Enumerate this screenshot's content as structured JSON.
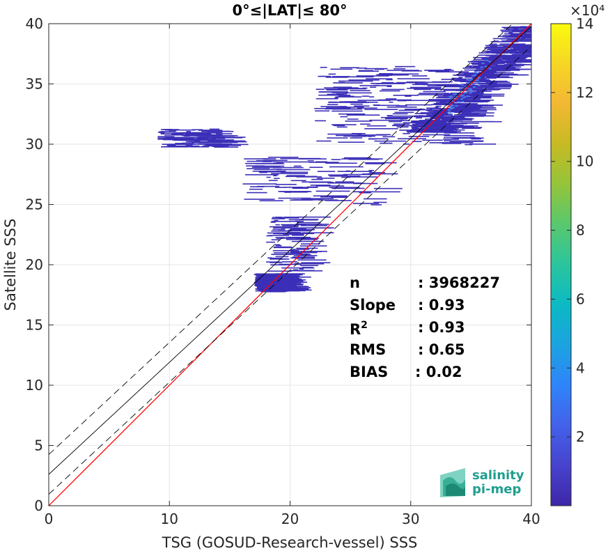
{
  "chart_data": {
    "type": "heatmap",
    "title": "0°≤|LAT|≤ 80°",
    "xlabel": "TSG (GOSUD-Research-vessel) SSS",
    "ylabel": "Satellite SSS",
    "xlim": [
      0,
      40
    ],
    "ylim": [
      0,
      40
    ],
    "xticks": [
      0,
      10,
      20,
      30,
      40
    ],
    "yticks": [
      0,
      5,
      10,
      15,
      20,
      25,
      30,
      35,
      40
    ],
    "grid": true,
    "colorbar": {
      "scale_label": "×10⁴",
      "range": [
        0,
        14
      ],
      "ticks": [
        2,
        4,
        6,
        8,
        10,
        12,
        14
      ],
      "colormap": [
        "#3e26a8",
        "#4743ce",
        "#4361e9",
        "#2f84fa",
        "#1ba3e0",
        "#0bbac4",
        "#2ac59e",
        "#59c86e",
        "#94c43a",
        "#c7ba23",
        "#f3b733",
        "#f6d625",
        "#f9fb0e"
      ]
    },
    "density_color": "#3b2fb8",
    "density_highlight_color": "#4a7ee8",
    "density_regions": [
      {
        "x": [
          30,
          39.5
        ],
        "y": [
          31,
          39.8
        ],
        "level": "high"
      },
      {
        "x": [
          22,
          35
        ],
        "y": [
          30,
          36.5
        ],
        "level": "medium"
      },
      {
        "x": [
          16,
          27
        ],
        "y": [
          25,
          29
        ],
        "level": "low"
      },
      {
        "x": [
          9,
          14
        ],
        "y": [
          29.8,
          31.3
        ],
        "level": "low"
      },
      {
        "x": [
          17,
          19
        ],
        "y": [
          17.8,
          19.3
        ],
        "level": "medium"
      },
      {
        "x": [
          18,
          21
        ],
        "y": [
          19.5,
          24
        ],
        "level": "low"
      }
    ],
    "lines": [
      {
        "name": "identity",
        "slope": 1.0,
        "intercept": 0.0,
        "color": "#ff0000",
        "style": "solid"
      },
      {
        "name": "fit",
        "slope": 0.93,
        "intercept": 2.6,
        "color": "#000000",
        "style": "solid"
      },
      {
        "name": "fit-upper",
        "slope": 0.93,
        "intercept": 4.25,
        "color": "#000000",
        "style": "dashed"
      },
      {
        "name": "fit-lower",
        "slope": 0.93,
        "intercept": 0.95,
        "color": "#000000",
        "style": "dashed"
      }
    ],
    "stats": [
      {
        "label": "n",
        "value": ": 3968227"
      },
      {
        "label": "Slope",
        "value": ": 0.93"
      },
      {
        "label": "R",
        "sup": "2",
        "value": ": 0.93"
      },
      {
        "label": "RMS",
        "value": ": 0.65"
      },
      {
        "label": "BIAS",
        "value": ": 0.02"
      }
    ],
    "logo": {
      "line1": "salinity",
      "line2": "pi-mep"
    }
  }
}
